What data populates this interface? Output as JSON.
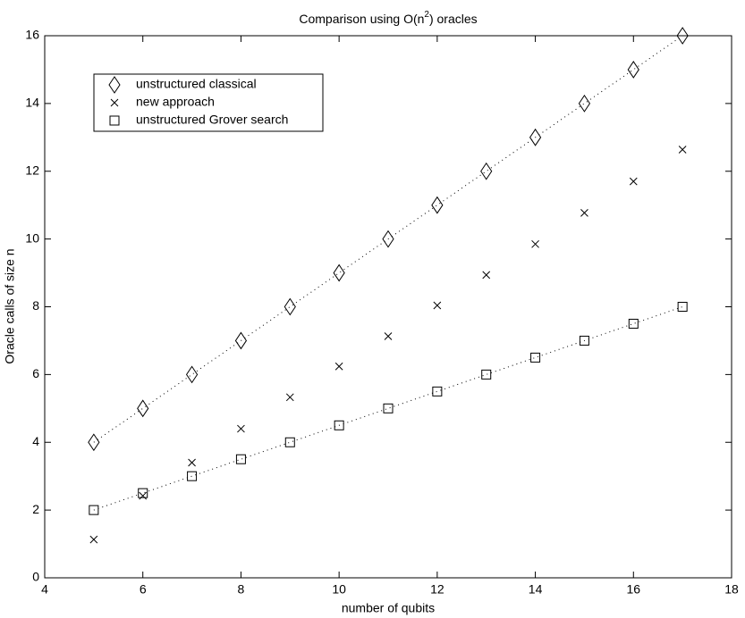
{
  "chart_data": {
    "type": "scatter",
    "title": [
      "Comparison using O(n",
      "2",
      ") oracles"
    ],
    "x_label": "number of qubits",
    "y_label": "Oracle calls of size n",
    "x": [
      5,
      6,
      7,
      8,
      9,
      10,
      11,
      12,
      13,
      14,
      15,
      16,
      17
    ],
    "series": [
      {
        "name": "unstructured classical",
        "color": "#000000",
        "marker": "diamond",
        "line": "dotted",
        "values": [
          4,
          5,
          6,
          7,
          8,
          9,
          10,
          11,
          12,
          13,
          14,
          15,
          16
        ]
      },
      {
        "name": "new approach",
        "color": "#000000",
        "marker": "x",
        "line": "none",
        "values": [
          1.13,
          2.42,
          3.4,
          4.4,
          5.33,
          6.24,
          7.13,
          8.04,
          8.94,
          9.85,
          10.77,
          11.7,
          12.64
        ]
      },
      {
        "name": "unstructured Grover search",
        "color": "#000000",
        "marker": "square",
        "line": "dotted",
        "values": [
          2,
          2.5,
          3,
          3.5,
          4,
          4.5,
          5,
          5.5,
          6,
          6.5,
          7,
          7.5,
          8
        ]
      }
    ],
    "xlim": [
      4,
      18
    ],
    "xticks": [
      4,
      6,
      8,
      10,
      12,
      14,
      16,
      18
    ],
    "ylim": [
      0,
      16
    ],
    "yticks": [
      0,
      2,
      4,
      6,
      8,
      10,
      12,
      14,
      16
    ],
    "grid": false,
    "legend": "upper left"
  }
}
